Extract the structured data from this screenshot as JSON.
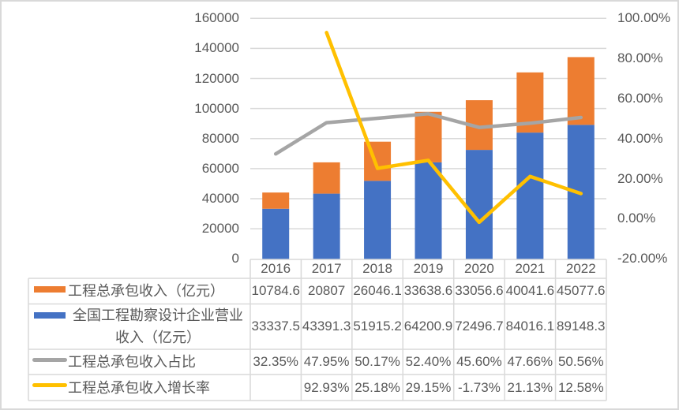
{
  "colors": {
    "engineering_contracting_revenue": "#ED7D31",
    "survey_design_revenue": "#4472C4",
    "contracting_share": "#A5A5A5",
    "contracting_growth": "#FFC000",
    "gridline": "#D9D9D9",
    "text": "#595959",
    "frame_border": "#D9D9D9"
  },
  "chart_data": {
    "type": "bar",
    "combo": "stacked bar (left axis) + lines (right axis) + data table",
    "title": "",
    "xlabel": "",
    "ylabel": "",
    "y2label": "",
    "categories": [
      "2016",
      "2017",
      "2018",
      "2019",
      "2020",
      "2021",
      "2022"
    ],
    "ylim": [
      0,
      160000
    ],
    "y2lim": [
      -20,
      100
    ],
    "y2_unit": "%",
    "left_axis_ticks": [
      "0",
      "20000",
      "40000",
      "60000",
      "80000",
      "100000",
      "120000",
      "140000",
      "160000"
    ],
    "right_axis_ticks": [
      "-20.00%",
      "0.00%",
      "20.00%",
      "40.00%",
      "60.00%",
      "80.00%",
      "100.00%"
    ],
    "grid": true,
    "legend_position": "data table below plot (legend keys in first column)",
    "series": [
      {
        "name": "工程总承包收入（亿元）",
        "type": "bar",
        "axis": "left",
        "stack_order": 1,
        "color": "#ED7D31",
        "values": [
          10784.6,
          20807,
          26046.1,
          33638.6,
          33056.6,
          40041.6,
          45077.6
        ]
      },
      {
        "name": "全国工程勘察设计企业营业收入（亿元）",
        "type": "bar",
        "axis": "left",
        "stack_order": 0,
        "color": "#4472C4",
        "values": [
          33337.5,
          43391.3,
          51915.2,
          64200.9,
          72496.7,
          84016.1,
          89148.3
        ]
      },
      {
        "name": "工程总承包收入占比",
        "type": "line",
        "axis": "right",
        "color": "#A5A5A5",
        "values": [
          32.35,
          47.95,
          50.17,
          52.4,
          45.6,
          47.66,
          50.56
        ]
      },
      {
        "name": "工程总承包收入增长率",
        "type": "line",
        "axis": "right",
        "color": "#FFC000",
        "values": [
          null,
          92.93,
          25.18,
          29.15,
          -1.73,
          21.13,
          12.58
        ]
      }
    ]
  },
  "data_table": {
    "header": [
      "2016",
      "2017",
      "2018",
      "2019",
      "2020",
      "2021",
      "2022"
    ],
    "rows": [
      {
        "label": "工程总承包收入（亿元）",
        "key": "bar",
        "color": "#ED7D31",
        "cells": [
          "10784.6",
          "20807",
          "26046.1",
          "33638.6",
          "33056.6",
          "40041.6",
          "45077.6"
        ]
      },
      {
        "label": "全国工程勘察设计企业营业收入（亿元）",
        "key": "bar",
        "color": "#4472C4",
        "cells": [
          "33337.5",
          "43391.3",
          "51915.2",
          "64200.9",
          "72496.7",
          "84016.1",
          "89148.3"
        ]
      },
      {
        "label": "工程总承包收入占比",
        "key": "line",
        "color": "#A5A5A5",
        "cells": [
          "32.35%",
          "47.95%",
          "50.17%",
          "52.40%",
          "45.60%",
          "47.66%",
          "50.56%"
        ]
      },
      {
        "label": "工程总承包收入增长率",
        "key": "line",
        "color": "#FFC000",
        "cells": [
          "",
          "92.93%",
          "25.18%",
          "29.15%",
          "-1.73%",
          "21.13%",
          "12.58%"
        ]
      }
    ]
  }
}
